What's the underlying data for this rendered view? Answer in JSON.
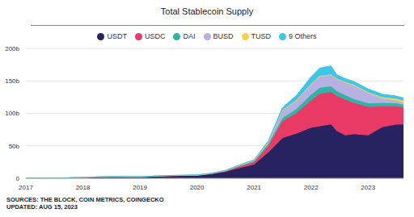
{
  "chart_data": {
    "type": "area",
    "title": "Total Stablecoin Supply",
    "footer": [
      "SOURCES: THE BLOCK, COIN METRICS, COINGECKO",
      "UPDATED: AUG 15, 2023"
    ],
    "x": [
      2017,
      2017.5,
      2018,
      2018.5,
      2019,
      2019.5,
      2020,
      2020.25,
      2020.5,
      2020.75,
      2021,
      2021.25,
      2021.5,
      2021.75,
      2022,
      2022.15,
      2022.35,
      2022.45,
      2022.6,
      2022.75,
      2023,
      2023.25,
      2023.5,
      2023.62
    ],
    "series": [
      {
        "name": "USDT",
        "color": "#272260",
        "values": [
          0.01,
          0.02,
          1.3,
          2.6,
          2.0,
          3.5,
          4.1,
          6.4,
          10,
          15.7,
          21,
          40,
          62,
          69,
          78,
          80,
          83,
          73,
          66,
          68,
          66,
          79,
          83,
          83
        ]
      },
      {
        "name": "USDC",
        "color": "#e83a64",
        "values": [
          0,
          0,
          0,
          0,
          0.3,
          0.5,
          0.5,
          0.7,
          1.2,
          2.7,
          4,
          10,
          26,
          32,
          42,
          50,
          50,
          54,
          55,
          48,
          44,
          32,
          28,
          26
        ]
      },
      {
        "name": "DAI",
        "color": "#2fb5a5",
        "values": [
          0,
          0,
          0,
          0,
          0.1,
          0.1,
          0.1,
          0.1,
          0.2,
          0.9,
          1.2,
          3,
          5,
          6,
          9,
          9.5,
          8.5,
          7.5,
          7,
          6,
          5.5,
          5,
          4.5,
          4.5
        ]
      },
      {
        "name": "BUSD",
        "color": "#b7b1e3",
        "values": [
          0,
          0,
          0,
          0,
          0,
          0,
          0.2,
          0.2,
          0.2,
          0.4,
          1,
          2,
          11,
          13,
          15,
          17,
          17.5,
          18,
          19,
          21,
          16,
          7,
          4,
          3
        ]
      },
      {
        "name": "TUSD",
        "color": "#f7d14b",
        "values": [
          0,
          0,
          0.1,
          0.2,
          0.2,
          0.2,
          0.2,
          0.3,
          0.4,
          0.4,
          0.3,
          0.5,
          1,
          1.2,
          1.3,
          1.2,
          1,
          1,
          1,
          1,
          1,
          2,
          3,
          3
        ]
      },
      {
        "name": "9 Others",
        "color": "#3cc7e8",
        "values": [
          0,
          0,
          0,
          0,
          0,
          0.05,
          0.1,
          0.2,
          0.4,
          0.7,
          1,
          2,
          4,
          7,
          11,
          12,
          13,
          6,
          5.5,
          5,
          5,
          4.5,
          4,
          4
        ]
      }
    ],
    "xlim": [
      2017,
      2023.62
    ],
    "xticks": [
      2017,
      2018,
      2019,
      2020,
      2021,
      2022,
      2023
    ],
    "ylim": [
      0,
      200
    ],
    "yticks": [
      {
        "value": 0,
        "label": "0"
      },
      {
        "value": 50,
        "label": "50b"
      },
      {
        "value": 100,
        "label": "100b"
      },
      {
        "value": 150,
        "label": "150b"
      },
      {
        "value": 200,
        "label": "200b"
      }
    ],
    "stacked": true,
    "grid": true,
    "legend": "top"
  }
}
